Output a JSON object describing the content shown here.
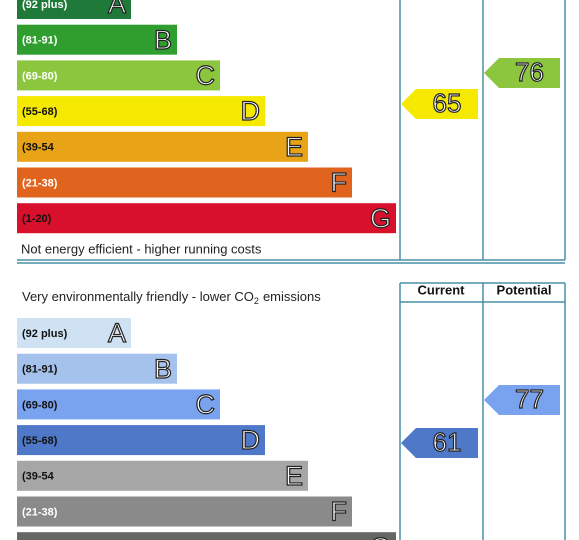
{
  "energy_efficiency": {
    "bands": [
      {
        "range": "(92 plus)",
        "letter": "A"
      },
      {
        "range": "(81-91)",
        "letter": "B"
      },
      {
        "range": "(69-80)",
        "letter": "C"
      },
      {
        "range": "(55-68)",
        "letter": "D"
      },
      {
        "range": "(39-54",
        "letter": "E"
      },
      {
        "range": "(21-38)",
        "letter": "F"
      },
      {
        "range": "(1-20)",
        "letter": "G"
      }
    ],
    "footer": "Not energy efficient - higher running costs",
    "current": 65,
    "potential": 76
  },
  "environmental_impact": {
    "header": "Very environmentally friendly - lower CO",
    "header_subscript": "2",
    "header_suffix": "emissions",
    "column_current": "Current",
    "column_potential": "Potential",
    "bands": [
      {
        "range": "(92 plus)",
        "letter": "A"
      },
      {
        "range": "(81-91)",
        "letter": "B"
      },
      {
        "range": "(69-80)",
        "letter": "C"
      },
      {
        "range": "(55-68)",
        "letter": "D"
      },
      {
        "range": "(39-54",
        "letter": "E"
      },
      {
        "range": "(21-38)",
        "letter": "F"
      },
      {
        "range": "",
        "letter": "G"
      }
    ],
    "current": 61,
    "potential": 77
  }
}
